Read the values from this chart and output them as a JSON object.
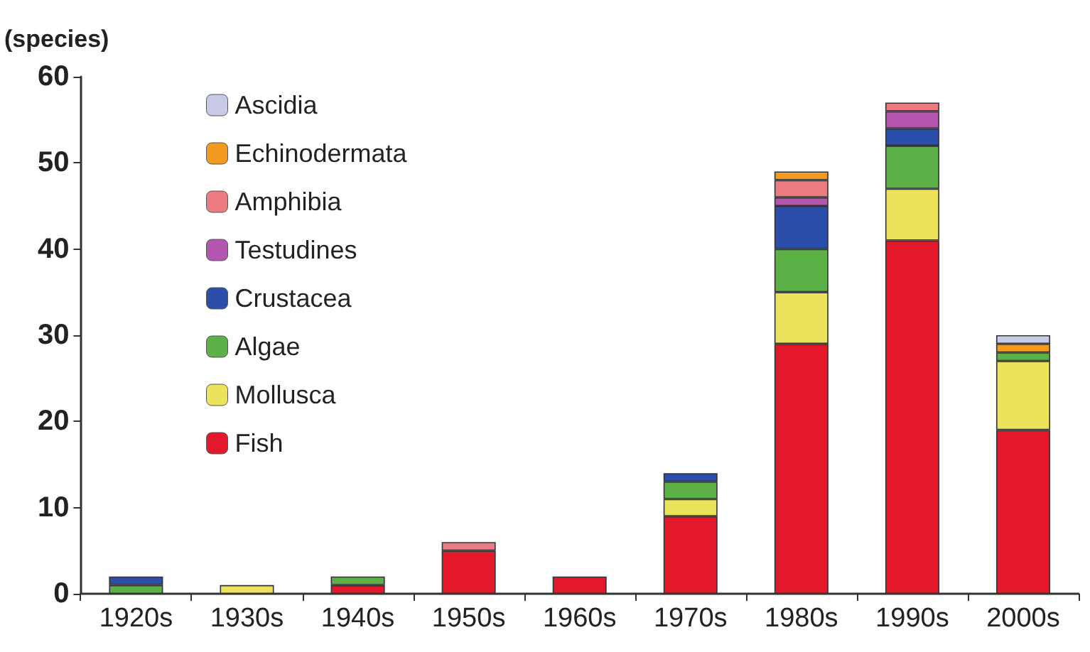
{
  "chart_data": {
    "type": "bar",
    "ylabel": "(species)",
    "stacked": true,
    "legend": "top left",
    "grid": false,
    "categories": [
      "1920s",
      "1930s",
      "1940s",
      "1950s",
      "1960s",
      "1970s",
      "1980s",
      "1990s",
      "2000s"
    ],
    "ylim": [
      0,
      60
    ],
    "yticks": [
      0,
      10,
      20,
      30,
      40,
      50,
      60
    ],
    "series": [
      {
        "name": "Fish",
        "color": "#e3192b",
        "values": [
          null,
          null,
          1,
          5,
          2,
          9,
          29,
          41,
          19
        ]
      },
      {
        "name": "Mollusca",
        "color": "#ebe35a",
        "values": [
          null,
          1,
          null,
          null,
          null,
          2,
          6,
          6,
          8
        ]
      },
      {
        "name": "Algae",
        "color": "#5bb046",
        "values": [
          1,
          null,
          1,
          null,
          null,
          2,
          5,
          5,
          1
        ]
      },
      {
        "name": "Crustacea",
        "color": "#2b4eaa",
        "values": [
          1,
          null,
          null,
          null,
          null,
          1,
          5,
          2,
          null
        ]
      },
      {
        "name": "Testudines",
        "color": "#b455b0",
        "values": [
          null,
          null,
          null,
          null,
          null,
          null,
          1,
          2,
          null
        ]
      },
      {
        "name": "Amphibia",
        "color": "#ec7b82",
        "values": [
          null,
          null,
          null,
          1,
          null,
          null,
          2,
          1,
          null
        ]
      },
      {
        "name": "Echinodermata",
        "color": "#f39a1f",
        "values": [
          null,
          null,
          null,
          null,
          null,
          null,
          1,
          null,
          1
        ]
      },
      {
        "name": "Ascidia",
        "color": "#c8cae6",
        "values": [
          null,
          null,
          null,
          null,
          null,
          null,
          null,
          null,
          1
        ]
      }
    ]
  }
}
